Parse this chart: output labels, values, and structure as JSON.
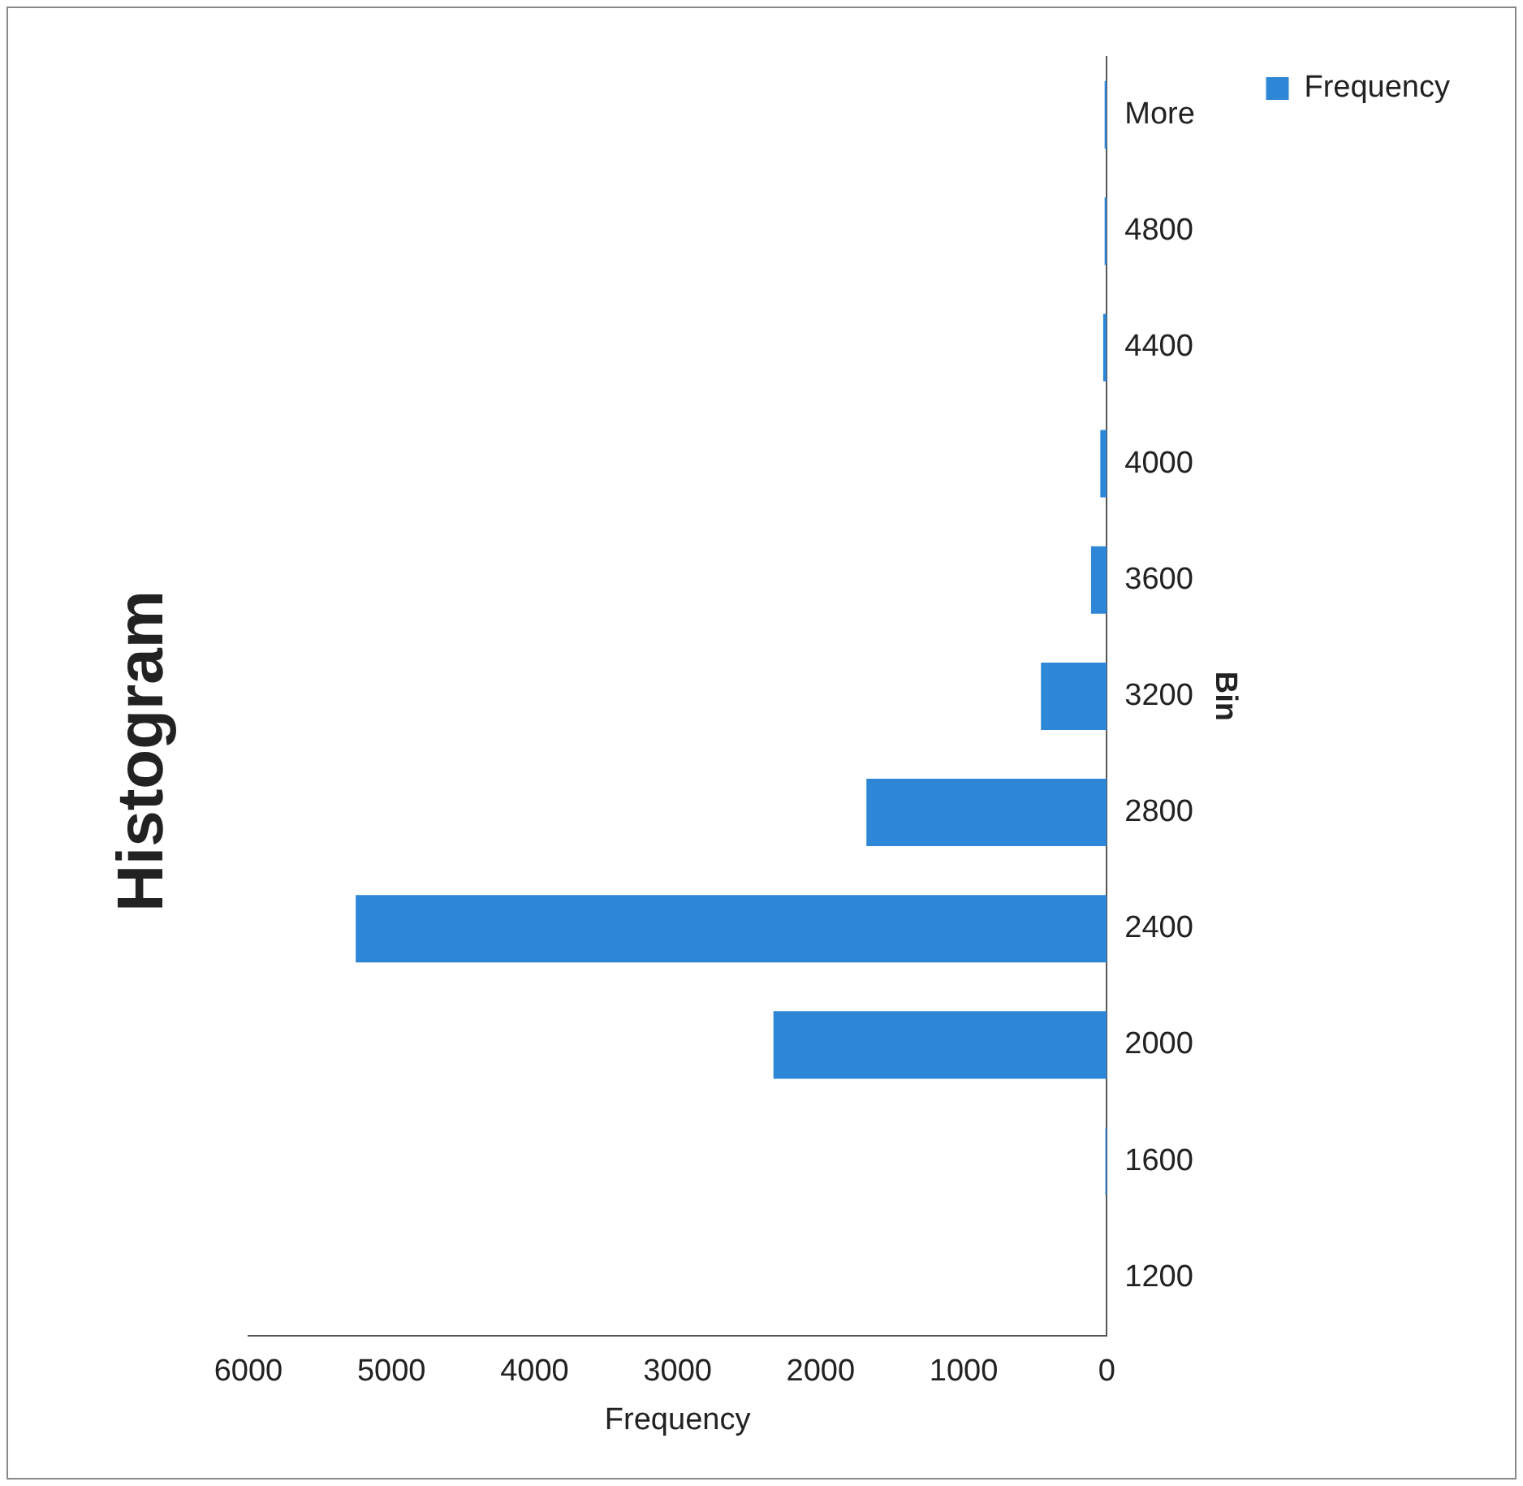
{
  "chart_data": {
    "type": "bar",
    "orientation": "horizontal",
    "title": "Histogram",
    "xlabel": "Frequency",
    "ylabel": "Bin",
    "categories": [
      "More",
      "4800",
      "4400",
      "4000",
      "3600",
      "3200",
      "2800",
      "2400",
      "2000",
      "1600",
      "1200"
    ],
    "series": [
      {
        "name": "Frequency",
        "color": "#2e86d6",
        "values": [
          15,
          15,
          25,
          45,
          110,
          460,
          1680,
          5250,
          2330,
          10,
          0
        ]
      }
    ],
    "xlim": [
      6000,
      0
    ],
    "xticks": [
      6000,
      5000,
      4000,
      3000,
      2000,
      1000,
      0
    ],
    "grid": false,
    "legend": "top right"
  }
}
